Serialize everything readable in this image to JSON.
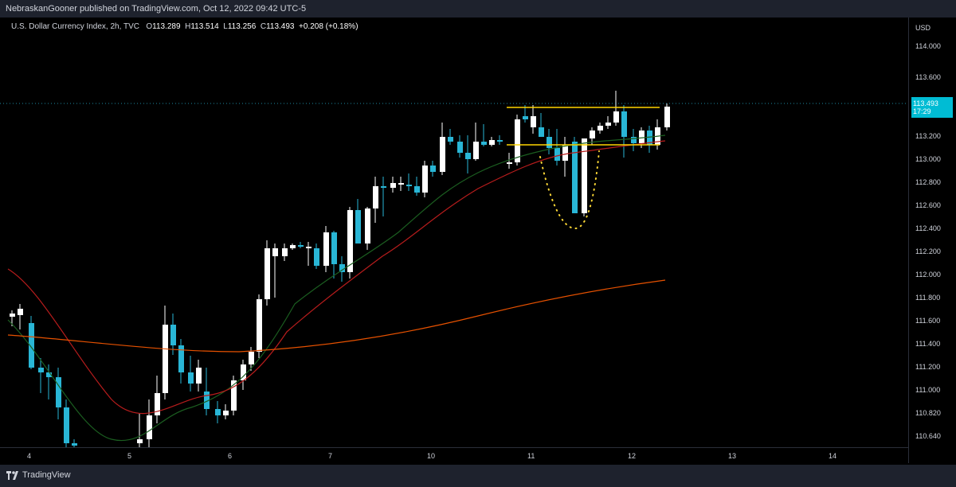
{
  "topbar": {
    "text": "NebraskanGooner published on TradingView.com, Oct 12, 2022 09:42 UTC-5"
  },
  "legend": {
    "title": "U.S. Dollar Currency Index, 2h, TVC",
    "o_label": "O",
    "o": "113.289",
    "h_label": "H",
    "h": "113.514",
    "l_label": "L",
    "l": "113.256",
    "c_label": "C",
    "c": "113.493",
    "change": "+0.208 (+0.18%)"
  },
  "price_axis": {
    "currency": "USD",
    "ticks": [
      "114.000",
      "113.600",
      "113.200",
      "113.000",
      "112.800",
      "112.600",
      "112.400",
      "112.200",
      "112.000",
      "111.800",
      "111.600",
      "111.400",
      "111.200",
      "111.000",
      "110.820",
      "110.640"
    ],
    "last_price": "113.493",
    "countdown": "17:29"
  },
  "time_axis": {
    "ticks": [
      "4",
      "5",
      "6",
      "7",
      "10",
      "11",
      "12",
      "13",
      "14"
    ]
  },
  "footer": {
    "brand": "TradingView"
  },
  "colors": {
    "up": "#ffffff",
    "down": "#29b6d6",
    "ema_fast": "#1b5e20",
    "ema_mid": "#b71c1c",
    "ema_slow": "#e65100",
    "line": "#ffd600",
    "dots": "#fdd835"
  }
}
